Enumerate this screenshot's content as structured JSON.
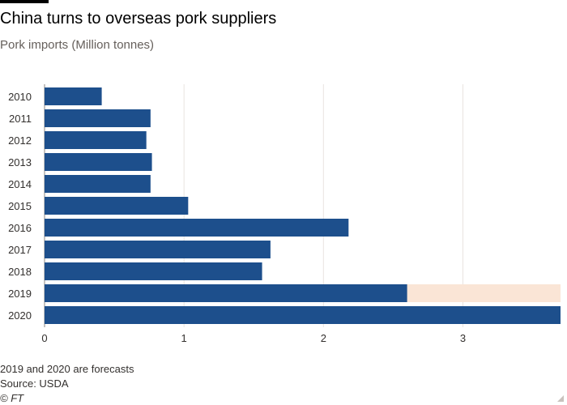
{
  "header": {
    "title": "China turns to overseas pork suppliers",
    "subtitle": "Pork imports (Million tonnes)"
  },
  "footer": {
    "note": "2019 and 2020 are forecasts",
    "source": "Source: USDA",
    "credit": "© FT"
  },
  "colors": {
    "bar": "#1d4f8c",
    "highlight": "#fae5d6",
    "grid": "#e9e4e0",
    "text": "#33302e"
  },
  "chart_data": {
    "type": "bar",
    "orientation": "horizontal",
    "categories": [
      "2010",
      "2011",
      "2012",
      "2013",
      "2014",
      "2015",
      "2016",
      "2017",
      "2018",
      "2019",
      "2020"
    ],
    "values": [
      0.41,
      0.76,
      0.73,
      0.77,
      0.76,
      1.03,
      2.18,
      1.62,
      1.56,
      2.6,
      3.7
    ],
    "highlight": {
      "categories": [
        "2019"
      ],
      "extent": 3.7
    },
    "xlim": [
      0,
      3.7
    ],
    "xticks": [
      0,
      1,
      2,
      3
    ],
    "grid": true,
    "title": "China turns to overseas pork suppliers",
    "subtitle": "Pork imports (Million tonnes)"
  }
}
